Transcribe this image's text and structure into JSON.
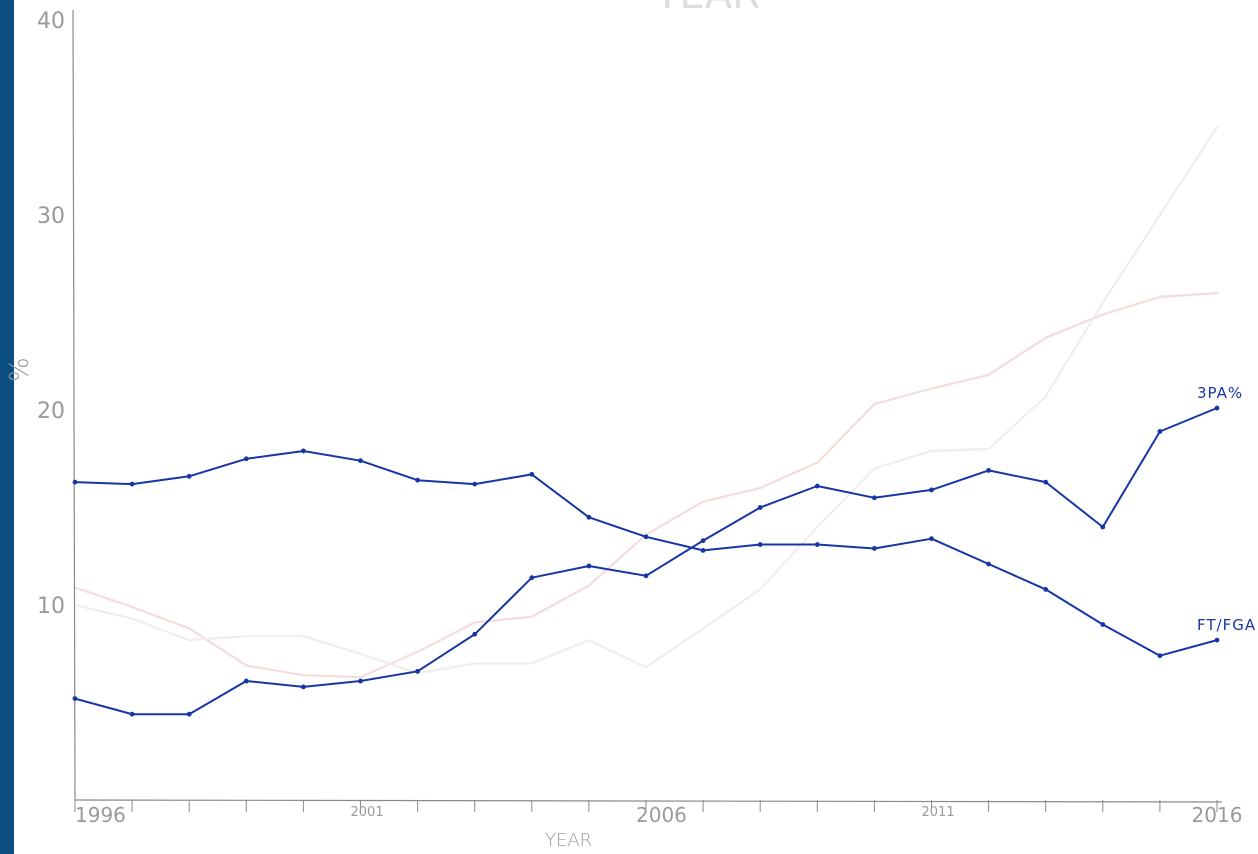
{
  "chart_data": {
    "type": "line",
    "title_fragment": "YEAR",
    "xlabel": "YEAR",
    "ylabel": "%",
    "xlim": [
      1996,
      2016
    ],
    "ylim": [
      0,
      40
    ],
    "x_ticks": [
      "1996",
      "2001",
      "2006",
      "2011",
      "2016"
    ],
    "y_ticks": [
      "10",
      "20",
      "30",
      "40"
    ],
    "x": [
      1996,
      1997,
      1998,
      1999,
      2000,
      2001,
      2002,
      2003,
      2004,
      2005,
      2006,
      2007,
      2008,
      2009,
      2010,
      2011,
      2012,
      2013,
      2014,
      2015,
      2016
    ],
    "series": [
      {
        "name": "3PA%",
        "emphasized": true,
        "color": "#1736a5",
        "values": [
          5.2,
          4.4,
          4.4,
          6.1,
          5.8,
          6.1,
          6.6,
          8.5,
          11.4,
          12.0,
          11.5,
          13.3,
          15.0,
          16.1,
          15.5,
          15.9,
          16.9,
          16.3,
          14.0,
          18.9,
          20.1
        ]
      },
      {
        "name": "FT/FGA",
        "emphasized": true,
        "color": "#1736a5",
        "values": [
          16.3,
          16.2,
          16.6,
          17.5,
          17.9,
          17.4,
          16.4,
          16.2,
          16.7,
          14.5,
          13.5,
          12.8,
          13.1,
          13.1,
          12.9,
          13.4,
          12.1,
          10.8,
          9.0,
          7.4,
          8.2
        ]
      },
      {
        "name": "",
        "emphasized": false,
        "color": "#f3dcdc",
        "values": [
          10.9,
          9.9,
          8.8,
          6.9,
          6.4,
          6.3,
          7.6,
          9.1,
          9.4,
          11.0,
          13.6,
          15.3,
          16.0,
          17.3,
          20.3,
          21.1,
          21.8,
          23.7,
          24.9,
          25.8,
          26.0
        ]
      },
      {
        "name": "",
        "emphasized": false,
        "color": "#f2eded",
        "values": [
          10.0,
          9.3,
          8.2,
          8.4,
          8.4,
          7.5,
          6.5,
          7.0,
          7.0,
          8.2,
          6.8,
          8.8,
          10.8,
          14.0,
          17.0,
          17.9,
          18.0,
          20.7,
          25.5,
          30.0,
          34.5
        ]
      }
    ],
    "grid": false,
    "legend": "direct labels at line ends"
  }
}
